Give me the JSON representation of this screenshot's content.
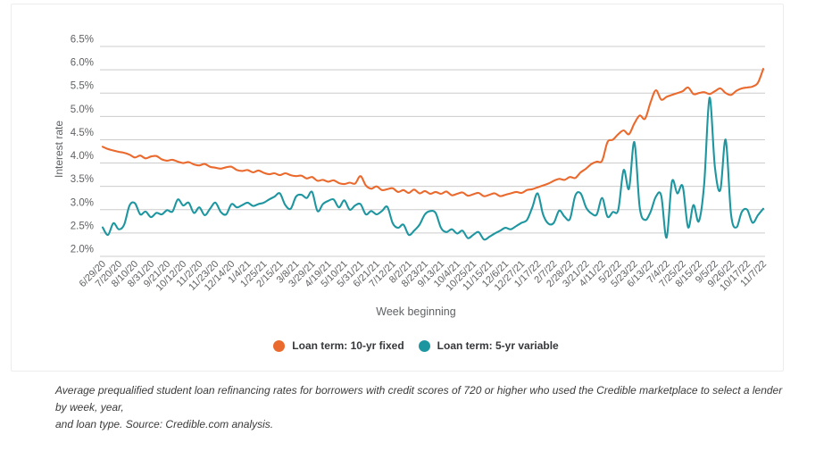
{
  "page": {
    "background": "#ffffff"
  },
  "chart": {
    "y_axis_title": "Interest rate",
    "x_axis_title": "Week beginning",
    "legend": [
      {
        "label": "Loan term: 10-yr fixed",
        "color": "#EA6A2E"
      },
      {
        "label": "Loan term: 5-yr variable",
        "color": "#1E96A0"
      }
    ],
    "caption_line1": "Average prequalified student loan refinancing rates for borrowers with credit scores of 720 or higher who used the Credible marketplace to select a lender by week, year,",
    "caption_line2": "and loan type. Source: Credible.com analysis."
  },
  "chart_data": {
    "type": "line",
    "title": "",
    "xlabel": "Week beginning",
    "ylabel": "Interest rate",
    "ylim": [
      2.0,
      6.5
    ],
    "y_tick_step": 0.5,
    "y_tick_labels": [
      "6.5%",
      "6.0%",
      "5.5%",
      "5.0%",
      "4.5%",
      "4.0%",
      "3.5%",
      "3.0%",
      "2.5%",
      "2.0%"
    ],
    "grid": true,
    "gridline_color": "#cccccc",
    "axis_text_color": "#5f6164",
    "legend_position": "bottom",
    "x_label_every": 3,
    "x_tick_labels": [
      "6/29/20",
      "7/20/20",
      "8/10/20",
      "8/31/20",
      "9/21/20",
      "10/12/20",
      "11/2/20",
      "11/23/20",
      "12/14/20",
      "1/4/21",
      "1/25/21",
      "2/15/21",
      "3/8/21",
      "3/29/21",
      "4/19/21",
      "5/10/21",
      "5/31/21",
      "6/21/21",
      "7/12/21",
      "8/2/21",
      "8/23/21",
      "9/13/21",
      "10/4/21",
      "10/25/21",
      "11/15/21",
      "12/6/21",
      "12/27/21",
      "1/17/22",
      "2/7/22",
      "2/28/22",
      "3/21/22",
      "4/11/22",
      "5/2/22",
      "5/23/22",
      "6/13/22",
      "7/4/22",
      "7/25/22",
      "8/15/22",
      "9/5/22",
      "9/26/22",
      "10/17/22",
      "11/7/22"
    ],
    "series": [
      {
        "name": "Loan term: 10-yr fixed",
        "color": "#EA6A2E",
        "values": [
          4.35,
          4.3,
          4.27,
          4.24,
          4.22,
          4.18,
          4.12,
          4.16,
          4.1,
          4.14,
          4.15,
          4.08,
          4.05,
          4.07,
          4.03,
          4.0,
          4.02,
          3.97,
          3.95,
          3.98,
          3.92,
          3.9,
          3.88,
          3.91,
          3.92,
          3.85,
          3.83,
          3.85,
          3.8,
          3.84,
          3.79,
          3.76,
          3.78,
          3.74,
          3.78,
          3.74,
          3.72,
          3.73,
          3.67,
          3.7,
          3.62,
          3.64,
          3.6,
          3.63,
          3.57,
          3.55,
          3.58,
          3.56,
          3.72,
          3.52,
          3.45,
          3.5,
          3.42,
          3.44,
          3.46,
          3.38,
          3.42,
          3.36,
          3.43,
          3.35,
          3.4,
          3.34,
          3.38,
          3.34,
          3.39,
          3.31,
          3.34,
          3.37,
          3.3,
          3.33,
          3.36,
          3.29,
          3.32,
          3.35,
          3.29,
          3.32,
          3.35,
          3.38,
          3.36,
          3.42,
          3.44,
          3.48,
          3.52,
          3.56,
          3.62,
          3.66,
          3.64,
          3.7,
          3.68,
          3.8,
          3.88,
          3.98,
          4.03,
          4.05,
          4.45,
          4.5,
          4.62,
          4.7,
          4.62,
          4.85,
          5.02,
          4.95,
          5.3,
          5.56,
          5.36,
          5.42,
          5.46,
          5.5,
          5.54,
          5.62,
          5.48,
          5.5,
          5.52,
          5.48,
          5.54,
          5.6,
          5.5,
          5.46,
          5.55,
          5.6,
          5.62,
          5.64,
          5.72,
          6.02
        ]
      },
      {
        "name": "Loan term: 5-yr variable",
        "color": "#1E96A0",
        "values": [
          2.62,
          2.46,
          2.71,
          2.58,
          2.68,
          3.09,
          3.14,
          2.9,
          2.96,
          2.84,
          2.93,
          2.9,
          2.99,
          2.96,
          3.22,
          3.09,
          3.15,
          2.93,
          3.05,
          2.88,
          3.02,
          3.15,
          2.95,
          2.9,
          3.12,
          3.05,
          3.1,
          3.15,
          3.08,
          3.12,
          3.15,
          3.22,
          3.28,
          3.35,
          3.1,
          3.02,
          3.28,
          3.32,
          3.25,
          3.38,
          2.97,
          3.12,
          3.19,
          3.22,
          3.05,
          3.2,
          3.0,
          3.09,
          3.12,
          2.9,
          2.97,
          2.9,
          2.97,
          3.06,
          2.71,
          2.61,
          2.68,
          2.46,
          2.55,
          2.68,
          2.9,
          2.97,
          2.93,
          2.61,
          2.52,
          2.58,
          2.49,
          2.55,
          2.39,
          2.46,
          2.52,
          2.36,
          2.42,
          2.49,
          2.55,
          2.61,
          2.58,
          2.65,
          2.72,
          2.78,
          3.05,
          3.35,
          2.9,
          2.7,
          2.72,
          2.98,
          2.85,
          2.8,
          3.3,
          3.35,
          3.05,
          2.92,
          2.9,
          3.25,
          2.85,
          2.95,
          3.0,
          3.85,
          3.45,
          4.45,
          3.05,
          2.78,
          2.95,
          3.28,
          3.3,
          2.4,
          3.6,
          3.35,
          3.5,
          2.62,
          3.1,
          2.75,
          3.55,
          5.4,
          3.9,
          3.42,
          4.5,
          2.9,
          2.62,
          2.95,
          3.0,
          2.72,
          2.88,
          3.02
        ]
      }
    ]
  }
}
